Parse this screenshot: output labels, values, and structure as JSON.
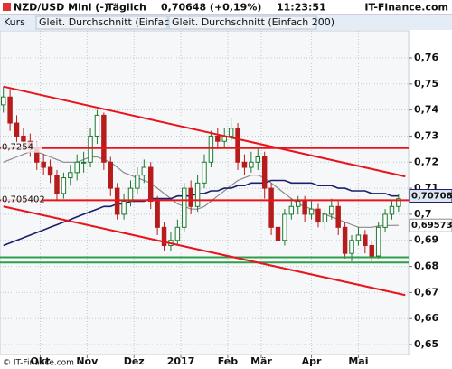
{
  "chart_data": {
    "type": "candlestick",
    "title": "NZD/USD Mini (-)",
    "interval": "Täglich",
    "price": "0,70648 (+0,19%)",
    "time": "11:23:51",
    "brand": "IT-Finance.com",
    "copyright": "© IT-Finance.com",
    "up_color": "#1b7a2e",
    "down_color": "#b71c1c",
    "candles": {
      "name": "Kurs",
      "open": [
        0.742,
        0.745,
        0.735,
        0.73,
        0.728,
        0.725,
        0.72,
        0.718,
        0.715,
        0.708,
        0.714,
        0.716,
        0.72,
        0.72,
        0.73,
        0.738,
        0.72,
        0.71,
        0.7,
        0.705,
        0.71,
        0.715,
        0.718,
        0.705,
        0.695,
        0.688,
        0.69,
        0.695,
        0.71,
        0.703,
        0.712,
        0.72,
        0.73,
        0.728,
        0.73,
        0.733,
        0.72,
        0.718,
        0.72,
        0.722,
        0.71,
        0.695,
        0.69,
        0.7,
        0.703,
        0.705,
        0.7,
        0.702,
        0.697,
        0.7,
        0.703,
        0.695,
        0.685,
        0.69,
        0.692,
        0.688,
        0.684,
        0.695,
        0.7,
        0.703
      ],
      "high": [
        0.749,
        0.748,
        0.738,
        0.733,
        0.731,
        0.728,
        0.723,
        0.721,
        0.717,
        0.716,
        0.719,
        0.723,
        0.724,
        0.733,
        0.74,
        0.739,
        0.722,
        0.712,
        0.708,
        0.713,
        0.718,
        0.721,
        0.72,
        0.707,
        0.697,
        0.693,
        0.698,
        0.712,
        0.713,
        0.715,
        0.723,
        0.732,
        0.733,
        0.733,
        0.737,
        0.735,
        0.723,
        0.724,
        0.725,
        0.724,
        0.712,
        0.697,
        0.702,
        0.706,
        0.707,
        0.707,
        0.705,
        0.704,
        0.702,
        0.706,
        0.705,
        0.697,
        0.692,
        0.695,
        0.694,
        0.69,
        0.697,
        0.702,
        0.705,
        0.708
      ],
      "low": [
        0.739,
        0.732,
        0.727,
        0.725,
        0.722,
        0.717,
        0.715,
        0.712,
        0.705,
        0.706,
        0.711,
        0.713,
        0.716,
        0.718,
        0.727,
        0.717,
        0.707,
        0.698,
        0.698,
        0.703,
        0.708,
        0.712,
        0.702,
        0.692,
        0.686,
        0.686,
        0.688,
        0.693,
        0.7,
        0.701,
        0.71,
        0.718,
        0.725,
        0.726,
        0.728,
        0.717,
        0.715,
        0.716,
        0.717,
        0.706,
        0.692,
        0.688,
        0.688,
        0.698,
        0.7,
        0.697,
        0.698,
        0.695,
        0.694,
        0.698,
        0.692,
        0.683,
        0.682,
        0.688,
        0.685,
        0.682,
        0.683,
        0.693,
        0.698,
        0.701
      ],
      "close": [
        0.745,
        0.735,
        0.73,
        0.728,
        0.725,
        0.72,
        0.718,
        0.715,
        0.708,
        0.714,
        0.716,
        0.72,
        0.72,
        0.73,
        0.738,
        0.72,
        0.71,
        0.7,
        0.705,
        0.71,
        0.715,
        0.718,
        0.705,
        0.695,
        0.688,
        0.69,
        0.695,
        0.71,
        0.703,
        0.712,
        0.72,
        0.73,
        0.728,
        0.73,
        0.733,
        0.72,
        0.718,
        0.72,
        0.722,
        0.71,
        0.695,
        0.69,
        0.7,
        0.703,
        0.705,
        0.7,
        0.702,
        0.697,
        0.7,
        0.703,
        0.695,
        0.685,
        0.69,
        0.692,
        0.688,
        0.684,
        0.695,
        0.7,
        0.703,
        0.706
      ]
    },
    "series": [
      {
        "name": "Gleit. Durchschnitt (Einfach 50)",
        "color": "#8a8a8a",
        "values": [
          0.72,
          0.721,
          0.722,
          0.723,
          0.724,
          0.724,
          0.723,
          0.722,
          0.721,
          0.72,
          0.72,
          0.72,
          0.721,
          0.722,
          0.722,
          0.721,
          0.72,
          0.718,
          0.716,
          0.715,
          0.714,
          0.713,
          0.712,
          0.71,
          0.708,
          0.706,
          0.704,
          0.703,
          0.702,
          0.702,
          0.703,
          0.705,
          0.707,
          0.709,
          0.711,
          0.713,
          0.714,
          0.715,
          0.715,
          0.714,
          0.712,
          0.71,
          0.708,
          0.706,
          0.704,
          0.703,
          0.702,
          0.701,
          0.7,
          0.699,
          0.698,
          0.697,
          0.696,
          0.695,
          0.695,
          0.695,
          0.6955,
          0.6957,
          0.6957,
          0.69573
        ]
      },
      {
        "name": "Gleit. Durchschnitt (Einfach 200)",
        "color": "#1a1f6b",
        "values": [
          0.688,
          0.689,
          0.69,
          0.691,
          0.692,
          0.693,
          0.694,
          0.695,
          0.696,
          0.697,
          0.698,
          0.699,
          0.7,
          0.701,
          0.702,
          0.703,
          0.703,
          0.704,
          0.704,
          0.705,
          0.705,
          0.705,
          0.706,
          0.706,
          0.706,
          0.706,
          0.707,
          0.707,
          0.707,
          0.708,
          0.708,
          0.709,
          0.709,
          0.71,
          0.71,
          0.711,
          0.711,
          0.712,
          0.712,
          0.712,
          0.713,
          0.713,
          0.713,
          0.712,
          0.712,
          0.712,
          0.712,
          0.711,
          0.711,
          0.711,
          0.71,
          0.71,
          0.709,
          0.709,
          0.709,
          0.708,
          0.708,
          0.708,
          0.707,
          0.707
        ]
      }
    ],
    "trend_lines": [
      {
        "x": [
          0,
          60
        ],
        "y": [
          0.749,
          0.7145
        ],
        "color": "#e8141b"
      },
      {
        "x": [
          0,
          60
        ],
        "y": [
          0.703,
          0.669
        ],
        "color": "#e8141b"
      }
    ],
    "levels": [
      {
        "value": 0.7254,
        "label": "0,7254",
        "color": "#e8141b"
      },
      {
        "value": 0.705402,
        "label": "0,705402",
        "color": "#e8141b"
      },
      {
        "value": 0.6835,
        "color": "#2e9e4a"
      },
      {
        "value": 0.6815,
        "color": "#2e9e4a"
      }
    ],
    "markers": [
      {
        "value": 0.70708,
        "label": "0,70708",
        "color": "#1a1f6b"
      },
      {
        "value": 0.69573,
        "label": "0,69573",
        "color": "#8a8a8a"
      }
    ],
    "xlim": [
      -0.5,
      60.5
    ],
    "xticks": [
      {
        "value": 5.5,
        "label": "Okt"
      },
      {
        "value": 12.5,
        "label": "Nov"
      },
      {
        "value": 19.5,
        "label": "Dez"
      },
      {
        "value": 26.5,
        "label": "2017"
      },
      {
        "value": 33.5,
        "label": "Feb"
      },
      {
        "value": 38.5,
        "label": "Mär"
      },
      {
        "value": 46,
        "label": "Apr"
      },
      {
        "value": 53,
        "label": "Mai"
      }
    ],
    "ylim": [
      0.6462,
      0.7704
    ],
    "yticks": [
      {
        "value": 0.65,
        "label": "0,65"
      },
      {
        "value": 0.66,
        "label": "0,66"
      },
      {
        "value": 0.67,
        "label": "0,67"
      },
      {
        "value": 0.68,
        "label": "0,68"
      },
      {
        "value": 0.69,
        "label": "0,69"
      },
      {
        "value": 0.7,
        "label": "0,7"
      },
      {
        "value": 0.71,
        "label": "0,71"
      },
      {
        "value": 0.72,
        "label": "0,72"
      },
      {
        "value": 0.73,
        "label": "0,73"
      },
      {
        "value": 0.74,
        "label": "0,74"
      },
      {
        "value": 0.75,
        "label": "0,75"
      },
      {
        "value": 0.76,
        "label": "0,76"
      }
    ],
    "grid": true
  }
}
